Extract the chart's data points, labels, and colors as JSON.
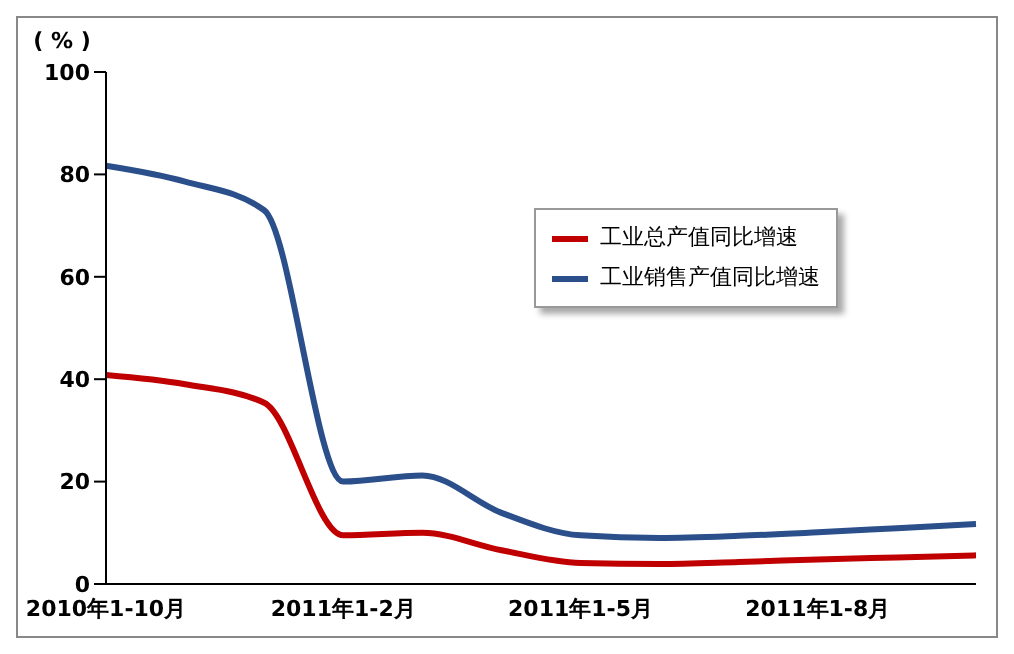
{
  "chart_data": {
    "type": "line",
    "ylabel": "( % )",
    "categories": [
      "2010年1-10月",
      null,
      null,
      "2011年1-2月",
      null,
      null,
      "2011年1-5月",
      null,
      null,
      "2011年1-8月",
      null,
      null
    ],
    "series": [
      {
        "name": "工业总产值同比增速",
        "color": "#c00000",
        "values": [
          40.8,
          39.0,
          35.4,
          9.5,
          10.0,
          6.6,
          4.1,
          3.9,
          4.3,
          4.8,
          5.2,
          5.6
        ]
      },
      {
        "name": "工业销售产值同比增速",
        "color": "#2a4f8a",
        "values": [
          81.7,
          78.6,
          73.0,
          20.0,
          21.2,
          13.9,
          9.5,
          9.0,
          9.4,
          10.1,
          10.9,
          11.7
        ]
      }
    ],
    "ylim": [
      0,
      100
    ],
    "yticks": [
      0,
      20,
      40,
      60,
      80,
      100
    ],
    "grid": false,
    "legend": "right",
    "marker": "none",
    "line_style": "solid"
  }
}
